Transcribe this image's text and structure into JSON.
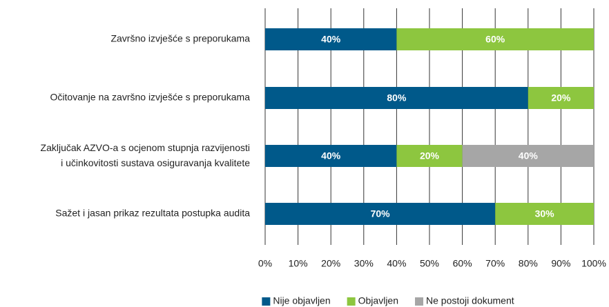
{
  "chart_data": {
    "type": "stacked_barh",
    "categories": [
      "Završno izvješće s preporukama",
      "Očitovanje na završno izvješće s preporukama",
      "Zaključak AZVO-a s ocjenom stupnja razvijenosti\ni učinkovitosti sustava osiguravanja kvalitete",
      "Sažet i jasan prikaz rezultata postupka audita"
    ],
    "series": [
      {
        "name": "Nije objavljen",
        "color": "#00598a",
        "values": [
          40,
          80,
          40,
          70
        ],
        "value_labels": [
          "40%",
          "80%",
          "40%",
          "70%"
        ]
      },
      {
        "name": "Objavljen",
        "color": "#8dc63f",
        "values": [
          60,
          20,
          20,
          30
        ],
        "value_labels": [
          "60%",
          "20%",
          "20%",
          "30%"
        ]
      },
      {
        "name": "Ne postoji dokument",
        "color": "#a6a6a6",
        "values": [
          null,
          null,
          40,
          null
        ],
        "value_labels": [
          null,
          null,
          "40%",
          null
        ]
      }
    ],
    "xlim": [
      0,
      100
    ],
    "xticks": [
      {
        "value": 0,
        "label": "0%"
      },
      {
        "value": 10,
        "label": "10%"
      },
      {
        "value": 20,
        "label": "20%"
      },
      {
        "value": 30,
        "label": "30%"
      },
      {
        "value": 40,
        "label": "40%"
      },
      {
        "value": 50,
        "label": "50%"
      },
      {
        "value": 60,
        "label": "60%"
      },
      {
        "value": 70,
        "label": "70%"
      },
      {
        "value": 80,
        "label": "80%"
      },
      {
        "value": 90,
        "label": "90%"
      },
      {
        "value": 100,
        "label": "100%"
      }
    ],
    "grid": true,
    "legend": "bottom"
  }
}
